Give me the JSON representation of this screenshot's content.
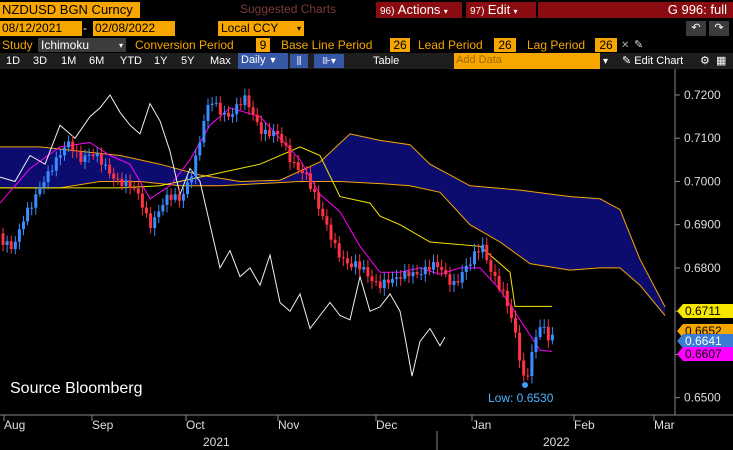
{
  "header": {
    "ticker": "NZDUSD BGN Curncy",
    "suggested_charts": "Suggested Charts",
    "actions_num": "96)",
    "actions_label": "Actions",
    "edit_num": "97)",
    "edit_label": "Edit",
    "page_label": "G 996: full"
  },
  "range": {
    "start": "08/12/2021",
    "end": "02/08/2022",
    "currency": "Local CCY"
  },
  "study": {
    "label": "Study",
    "value": "Ichimoku",
    "conversion_label": "Conversion Period",
    "conversion_value": "9",
    "base_label": "Base Line Period",
    "base_value": "26",
    "lead_label": "Lead Period",
    "lead_value": "26",
    "lag_label": "Lag Period",
    "lag_value": "26"
  },
  "toolbar": {
    "periods": [
      "1D",
      "3D",
      "1M",
      "6M",
      "YTD",
      "1Y",
      "5Y",
      "Max"
    ],
    "frequency": "Daily",
    "table_label": "Table",
    "add_data_placeholder": "Add Data",
    "edit_chart_label": "Edit Chart"
  },
  "chart_data": {
    "type": "candlestick",
    "title": "",
    "annotation": "Source Bloomberg",
    "low_label": "Low: 0.6530",
    "ylim": [
      0.646,
      0.726
    ],
    "y_ticks": [
      "0.7200",
      "0.7100",
      "0.7000",
      "0.6900",
      "0.6800",
      "0.6700",
      "0.6600",
      "0.6500"
    ],
    "x_months": [
      "Aug",
      "Sep",
      "Oct",
      "Nov",
      "Dec",
      "Jan",
      "Feb",
      "Mar"
    ],
    "x_years": [
      "2021",
      "2022"
    ],
    "last_values": [
      {
        "label": "0.6711",
        "color": "#f7e600"
      },
      {
        "label": "0.6652",
        "color": "#f7a600"
      },
      {
        "label": "0.6641",
        "color": "#3a7bd5"
      },
      {
        "label": "0.6607",
        "color": "#ff00ff"
      }
    ],
    "legend": "none",
    "grid": false
  }
}
